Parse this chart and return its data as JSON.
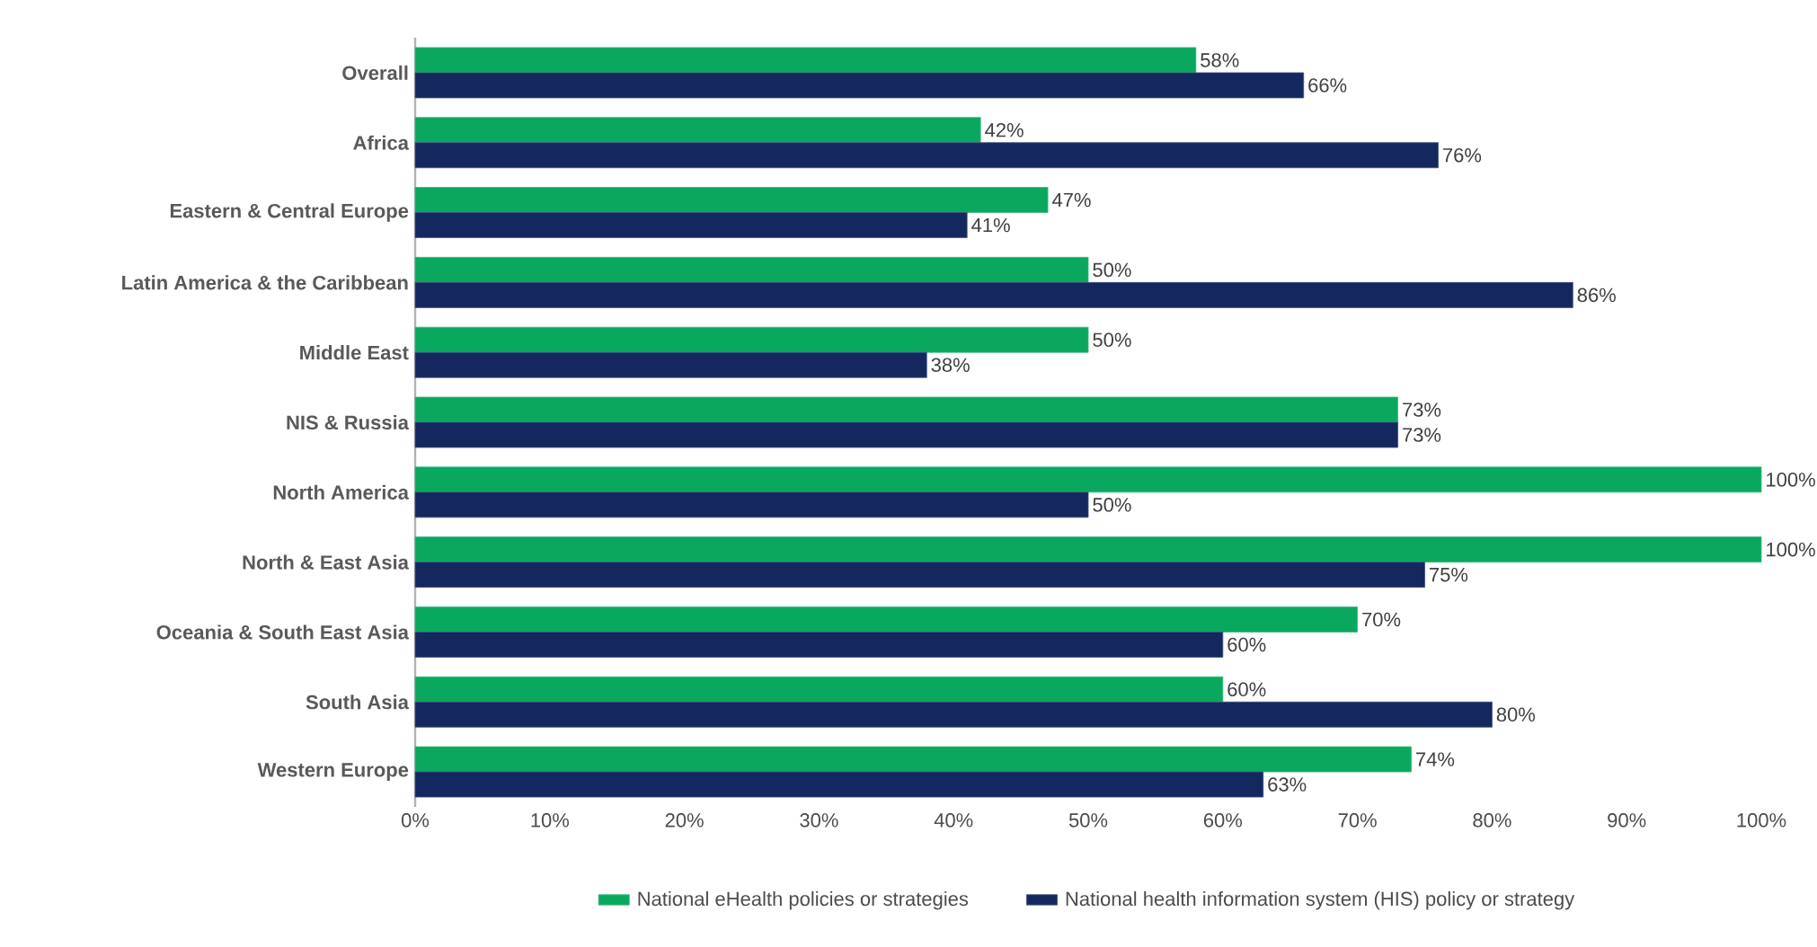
{
  "chart_data": {
    "type": "bar",
    "orientation": "horizontal",
    "categories": [
      "Overall",
      "Africa",
      "Eastern & Central Europe",
      "Latin America & the Caribbean",
      "Middle East",
      "NIS & Russia",
      "North America",
      "North & East Asia",
      "Oceania & South East Asia",
      "South Asia",
      "Western Europe"
    ],
    "series": [
      {
        "name": "National eHealth policies or strategies",
        "color": "#0aa85e",
        "values": [
          58,
          42,
          47,
          50,
          50,
          73,
          100,
          100,
          70,
          60,
          74
        ],
        "value_labels": [
          "58%",
          "42%",
          "47%",
          "50%",
          "50%",
          "73%",
          "100%",
          "100%",
          "70%",
          "60%",
          "74%"
        ]
      },
      {
        "name": "National health information system (HIS) policy or strategy",
        "color": "#15275f",
        "values": [
          66,
          76,
          41,
          86,
          38,
          73,
          50,
          75,
          60,
          80,
          63
        ],
        "value_labels": [
          "66%",
          "76%",
          "41%",
          "86%",
          "38%",
          "73%",
          "50%",
          "75%",
          "60%",
          "80%",
          "63%"
        ]
      }
    ],
    "xlim": [
      0,
      100
    ],
    "xticks": [
      {
        "value": 0,
        "label": "0%"
      },
      {
        "value": 10,
        "label": "10%"
      },
      {
        "value": 20,
        "label": "20%"
      },
      {
        "value": 30,
        "label": "30%"
      },
      {
        "value": 40,
        "label": "40%"
      },
      {
        "value": 50,
        "label": "50%"
      },
      {
        "value": 60,
        "label": "60%"
      },
      {
        "value": 70,
        "label": "70%"
      },
      {
        "value": 80,
        "label": "80%"
      },
      {
        "value": 90,
        "label": "90%"
      },
      {
        "value": 100,
        "label": "100%"
      }
    ],
    "grid": false,
    "legend": "bottom"
  }
}
